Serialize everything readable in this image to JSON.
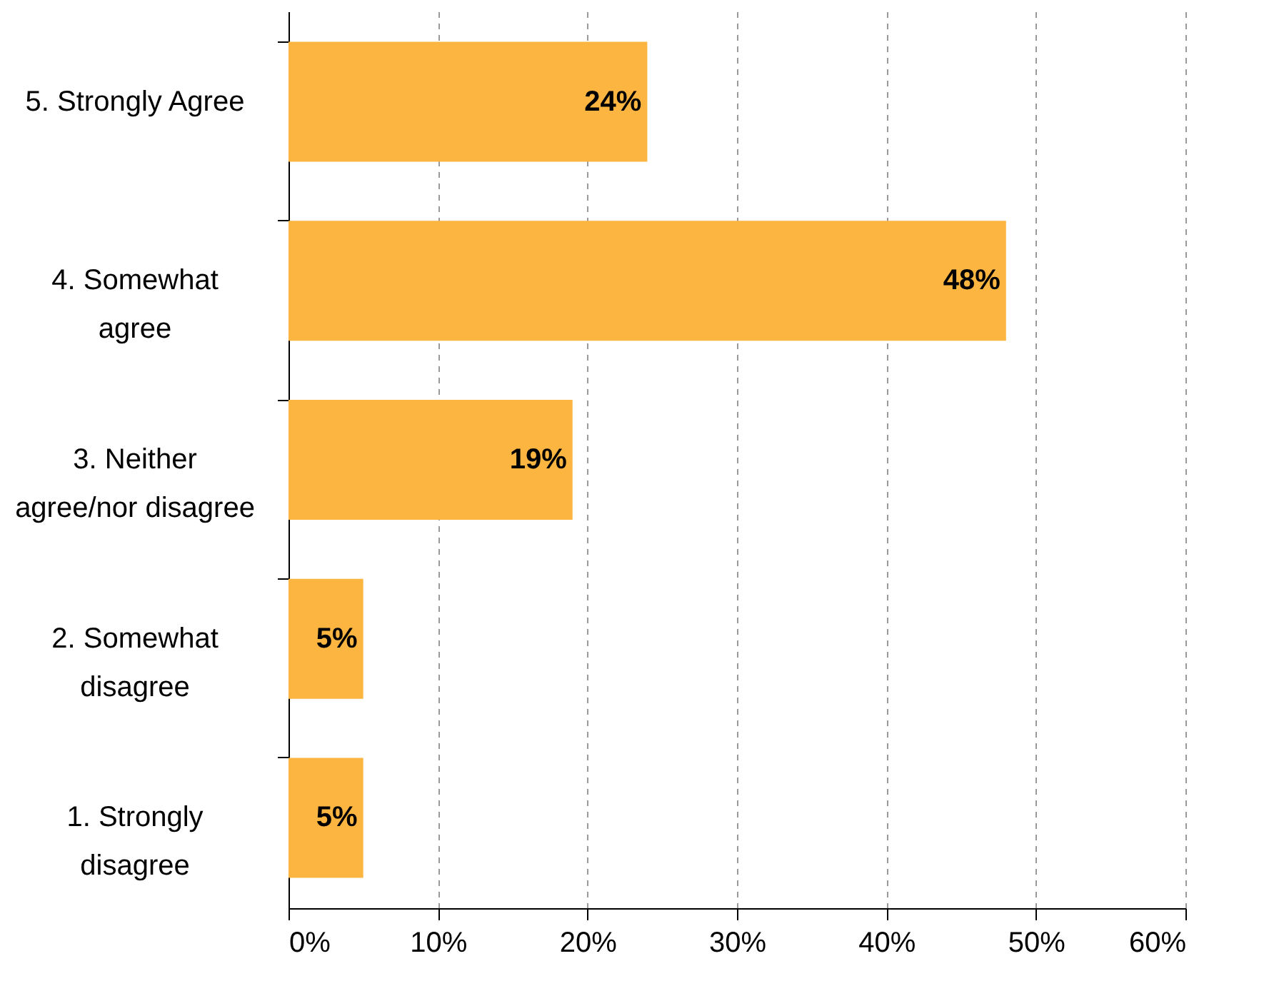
{
  "chart_data": {
    "type": "bar",
    "orientation": "horizontal",
    "categories": [
      "5. Strongly Agree",
      "4. Somewhat\nagree",
      "3. Neither\nagree/nor disagree",
      "2. Somewhat\ndisagree",
      "1. Strongly\ndisagree"
    ],
    "values": [
      24,
      48,
      19,
      5,
      5
    ],
    "value_labels": [
      "24%",
      "48%",
      "19%",
      "5%",
      "5%"
    ],
    "color": "#fbb540",
    "xlim": [
      0,
      60
    ],
    "xticks": [
      {
        "value": 0,
        "label": "0%"
      },
      {
        "value": 10,
        "label": "10%"
      },
      {
        "value": 20,
        "label": "20%"
      },
      {
        "value": 30,
        "label": "30%"
      },
      {
        "value": 40,
        "label": "40%"
      },
      {
        "value": 50,
        "label": "50%"
      },
      {
        "value": 60,
        "label": "60%"
      }
    ],
    "grid": "x"
  }
}
